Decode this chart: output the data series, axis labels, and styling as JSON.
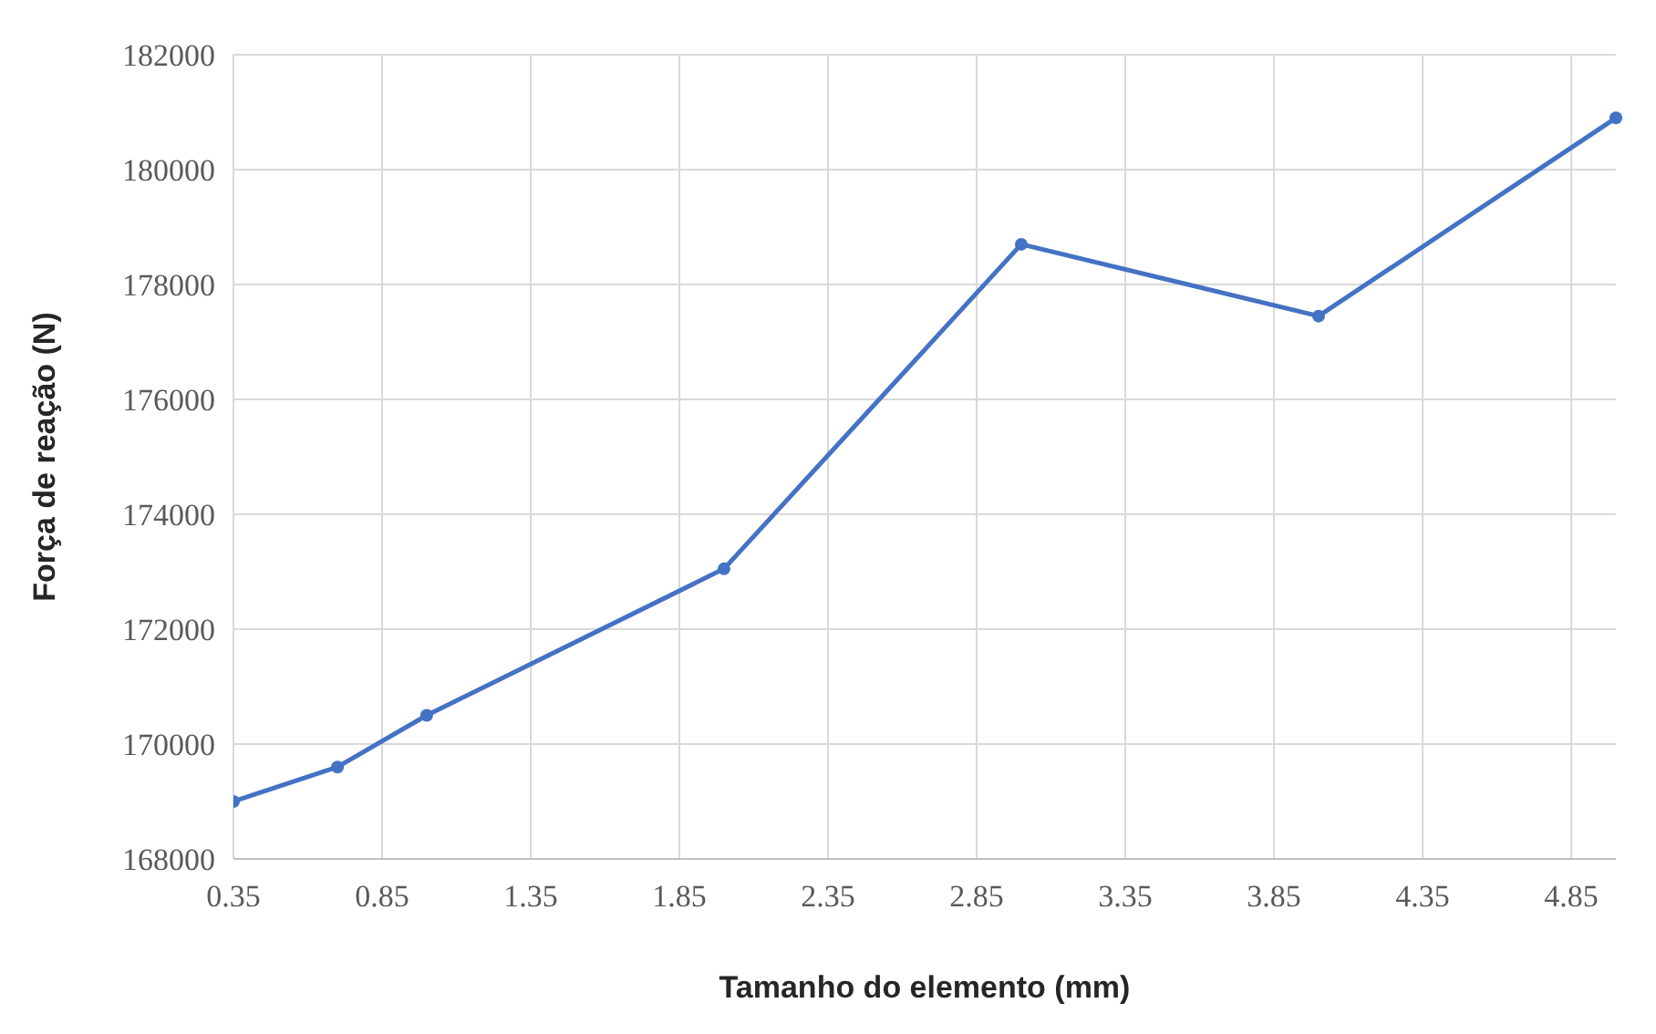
{
  "chart_data": {
    "type": "line",
    "xlabel": "Tamanho do elemento (mm)",
    "ylabel": "Força de reação (N)",
    "x": [
      0.35,
      0.7,
      1.0,
      2.0,
      3.0,
      4.0,
      5.0
    ],
    "series": [
      {
        "color": "#4472c4",
        "values": [
          169000,
          169600,
          170500,
          173050,
          178700,
          177450,
          180900
        ]
      }
    ],
    "xlim": [
      0.35,
      5.0
    ],
    "xticks": [
      0.35,
      0.85,
      1.35,
      1.85,
      2.35,
      2.85,
      3.35,
      3.85,
      4.35,
      4.85
    ],
    "ylim": [
      168000,
      182000
    ],
    "yticks": [
      168000,
      170000,
      172000,
      174000,
      176000,
      178000,
      180000,
      182000
    ],
    "grid": true,
    "marker": "circle",
    "line_style": "solid"
  }
}
